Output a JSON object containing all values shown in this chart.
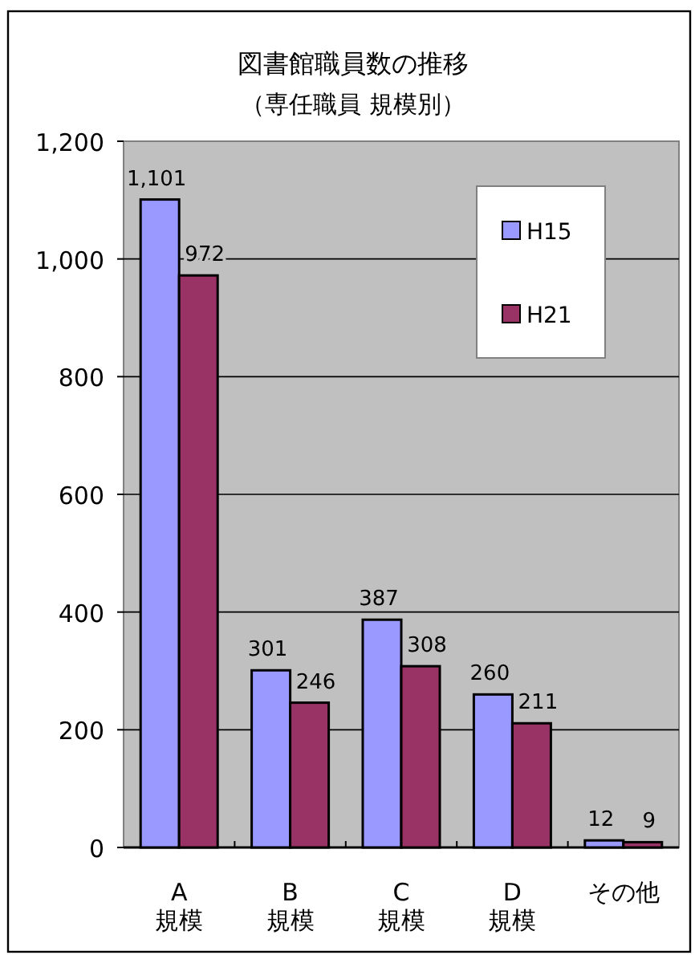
{
  "chart_data": {
    "type": "bar",
    "title": "図書館職員数の推移",
    "subtitle": "（専任職員 規模別）",
    "categories": [
      "A\n規模",
      "B\n規模",
      "C\n規模",
      "D\n規模",
      "その他"
    ],
    "series": [
      {
        "name": "H15",
        "color": "#9999ff",
        "values": [
          1101,
          301,
          387,
          260,
          12
        ],
        "value_labels": [
          "1,101",
          "301",
          "387",
          "260",
          "12"
        ]
      },
      {
        "name": "H21",
        "color": "#993366",
        "values": [
          972,
          246,
          308,
          211,
          9
        ],
        "value_labels": [
          "972",
          "246",
          "308",
          "211",
          "9"
        ]
      }
    ],
    "ylim": [
      0,
      1200
    ],
    "yticks": [
      {
        "value": 0,
        "label": "0"
      },
      {
        "value": 200,
        "label": "200"
      },
      {
        "value": 400,
        "label": "400"
      },
      {
        "value": 600,
        "label": "600"
      },
      {
        "value": 800,
        "label": "800"
      },
      {
        "value": 1000,
        "label": "1,000"
      },
      {
        "value": 1200,
        "label": "1,200"
      }
    ],
    "grid": "y",
    "legend": "top right"
  }
}
